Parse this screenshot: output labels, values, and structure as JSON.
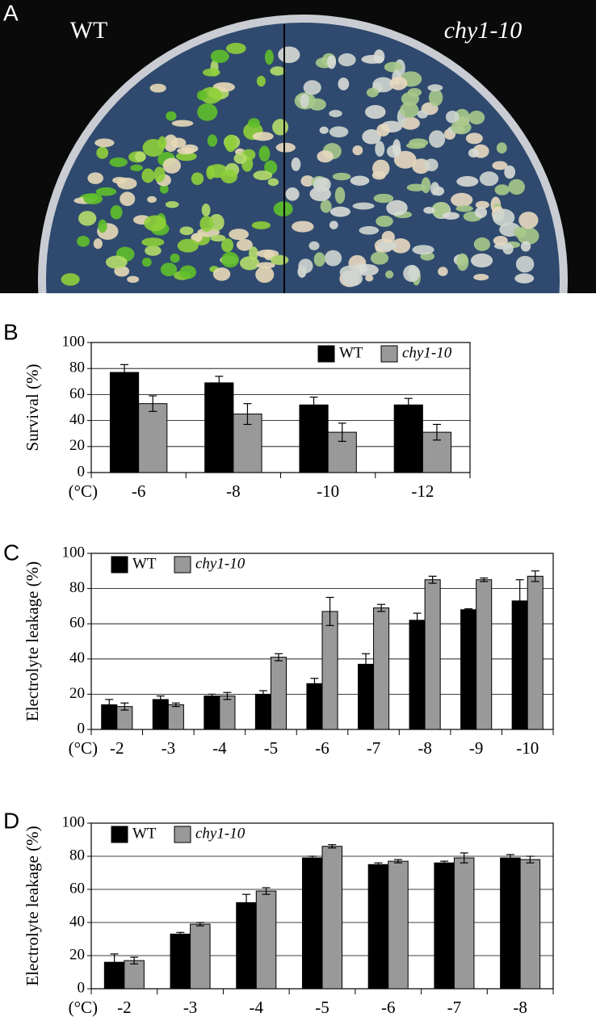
{
  "photo": {
    "panel_label": "A",
    "left_label": "WT",
    "right_label": "chy1-10"
  },
  "chart_data": [
    {
      "type": "bar",
      "panel_label": "B",
      "y_label": "Survival (%)",
      "x_label": "(°C)",
      "categories": [
        "-6",
        "-8",
        "-10",
        "-12"
      ],
      "series": [
        {
          "name": "WT",
          "color": "#000000",
          "values": [
            77,
            69,
            52,
            52
          ],
          "errors": [
            6,
            5,
            6,
            5
          ]
        },
        {
          "name": "chy1-10",
          "color": "#999999",
          "values": [
            53,
            45,
            31,
            31
          ],
          "errors": [
            6,
            8,
            7,
            6
          ]
        }
      ],
      "ylim": [
        0,
        100
      ],
      "yticks": [
        0,
        20,
        40,
        60,
        80,
        100
      ],
      "grid": true,
      "legend": "upper right"
    },
    {
      "type": "bar",
      "panel_label": "C",
      "y_label": "Electrolyte leakage (%)",
      "x_label": "(°C)",
      "categories": [
        "-2",
        "-3",
        "-4",
        "-5",
        "-6",
        "-7",
        "-8",
        "-9",
        "-10"
      ],
      "series": [
        {
          "name": "WT",
          "color": "#000000",
          "values": [
            14,
            17,
            19,
            20,
            26,
            37,
            62,
            68,
            73
          ],
          "errors": [
            3,
            2,
            1,
            2,
            3,
            6,
            4,
            0.5,
            12
          ]
        },
        {
          "name": "chy1-10",
          "color": "#999999",
          "values": [
            13,
            14,
            19,
            41,
            67,
            69,
            85,
            85,
            87
          ],
          "errors": [
            2,
            1,
            2,
            2,
            8,
            2,
            2,
            1,
            3
          ]
        }
      ],
      "ylim": [
        0,
        100
      ],
      "yticks": [
        0,
        20,
        40,
        60,
        80,
        100
      ],
      "grid": true,
      "legend": "upper left"
    },
    {
      "type": "bar",
      "panel_label": "D",
      "y_label": "Electrolyte leakage (%)",
      "x_label": "(°C)",
      "categories": [
        "-2",
        "-3",
        "-4",
        "-5",
        "-6",
        "-7",
        "-8"
      ],
      "series": [
        {
          "name": "WT",
          "color": "#000000",
          "values": [
            16,
            33,
            52,
            79,
            75,
            76,
            79
          ],
          "errors": [
            5,
            1,
            5,
            1,
            1,
            1,
            2
          ]
        },
        {
          "name": "chy1-10",
          "color": "#999999",
          "values": [
            17,
            39,
            59,
            86,
            77,
            79,
            78
          ],
          "errors": [
            2,
            1,
            2,
            1,
            1,
            3,
            2
          ]
        }
      ],
      "ylim": [
        0,
        100
      ],
      "yticks": [
        0,
        20,
        40,
        60,
        80,
        100
      ],
      "grid": true,
      "legend": "upper left"
    }
  ]
}
